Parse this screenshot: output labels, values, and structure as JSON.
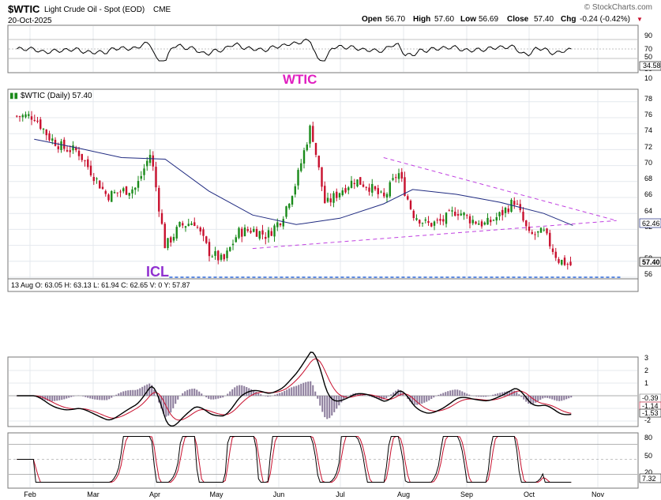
{
  "header": {
    "symbol": "$WTIC",
    "description": "Light Crude Oil - Spot (EOD)",
    "exchange": "CME",
    "date": "20-Oct-2025",
    "watermark": "© StockCharts.com",
    "open_label": "Open",
    "open": "56.70",
    "high_label": "High",
    "high": "57.60",
    "low_label": "Low",
    "low": "56.69",
    "close_label": "Close",
    "close": "57.40",
    "chg_label": "Chg",
    "chg": "-0.24 (-0.42%)",
    "chg_marker": "▼"
  },
  "rsi_panel": {
    "axis_labels": [
      "90",
      "70",
      "50",
      "30",
      "10"
    ],
    "current_label": "34.58",
    "colors": {
      "line": "#000000",
      "band": "#444444"
    }
  },
  "price_panel": {
    "legend": "$WTIC (Daily) 57.40",
    "title_annotation": "WTIC",
    "icl_annotation": "ICL",
    "axis_labels": [
      "78",
      "76",
      "74",
      "72",
      "70",
      "68",
      "66",
      "64",
      "62",
      "60",
      "58",
      "56"
    ],
    "ma_label": "62.46",
    "last_label": "57.40",
    "hover_bar": "13 Aug O: 63.05 H: 63.13 L: 61.94 C: 62.65 V: 0 Y: 57.87",
    "colors": {
      "up": "#1a8a1a",
      "down": "#c8102e",
      "ma": "#1f2a80",
      "trend": "#c040e0",
      "icl_line": "#2a66d9",
      "title_annotation": "#e020c0",
      "icl_text": "#9030d0"
    }
  },
  "macd_panel": {
    "axis_labels": [
      "3",
      "2",
      "1",
      "0",
      "-1",
      "-2"
    ],
    "current_labels": [
      "-0.39",
      "-1.14",
      "-1.53"
    ],
    "colors": {
      "macd": "#000000",
      "signal": "#c8102e",
      "hist": "#8a7a9a"
    }
  },
  "stoch_panel": {
    "axis_labels": [
      "80",
      "50",
      "20"
    ],
    "current_label": "7.32",
    "colors": {
      "k": "#000000",
      "d": "#c8102e"
    }
  },
  "x_axis": {
    "months": [
      "Feb",
      "Mar",
      "Apr",
      "May",
      "Jun",
      "Jul",
      "Aug",
      "Sep",
      "Oct",
      "Nov"
    ]
  },
  "chart_data": {
    "type": "candlestick",
    "title": "$WTIC Light Crude Oil - Spot (EOD)",
    "last_close": 57.4,
    "ylim": [
      55.5,
      79.5
    ],
    "price_path": [
      [
        "2025-02-03",
        76.2
      ],
      [
        "2025-02-10",
        73.6
      ],
      [
        "2025-02-17",
        72.2
      ],
      [
        "2025-02-24",
        71.8
      ],
      [
        "2025-03-03",
        69.0
      ],
      [
        "2025-03-10",
        66.2
      ],
      [
        "2025-03-17",
        66.8
      ],
      [
        "2025-03-24",
        67.2
      ],
      [
        "2025-03-31",
        71.6
      ],
      [
        "2025-04-07",
        59.8
      ],
      [
        "2025-04-14",
        62.4
      ],
      [
        "2025-04-21",
        63.0
      ],
      [
        "2025-04-28",
        59.2
      ],
      [
        "2025-05-05",
        58.0
      ],
      [
        "2025-05-12",
        61.6
      ],
      [
        "2025-05-19",
        62.0
      ],
      [
        "2025-05-26",
        61.2
      ],
      [
        "2025-06-02",
        63.4
      ],
      [
        "2025-06-09",
        68.0
      ],
      [
        "2025-06-16",
        75.0
      ],
      [
        "2025-06-23",
        65.0
      ],
      [
        "2025-06-30",
        66.8
      ],
      [
        "2025-07-07",
        68.2
      ],
      [
        "2025-07-14",
        67.4
      ],
      [
        "2025-07-21",
        65.8
      ],
      [
        "2025-07-28",
        69.2
      ],
      [
        "2025-08-04",
        64.0
      ],
      [
        "2025-08-11",
        62.6
      ],
      [
        "2025-08-18",
        63.0
      ],
      [
        "2025-08-25",
        64.4
      ],
      [
        "2025-09-01",
        63.2
      ],
      [
        "2025-09-08",
        62.6
      ],
      [
        "2025-09-15",
        63.8
      ],
      [
        "2025-09-22",
        65.6
      ],
      [
        "2025-09-29",
        61.2
      ],
      [
        "2025-10-06",
        61.6
      ],
      [
        "2025-10-13",
        58.2
      ],
      [
        "2025-10-20",
        57.4
      ]
    ],
    "moving_average": [
      [
        "2025-02-03",
        73.3
      ],
      [
        "2025-02-24",
        72.2
      ],
      [
        "2025-03-17",
        71.0
      ],
      [
        "2025-04-07",
        70.8
      ],
      [
        "2025-04-28",
        66.8
      ],
      [
        "2025-05-19",
        63.8
      ],
      [
        "2025-06-09",
        62.6
      ],
      [
        "2025-06-30",
        63.4
      ],
      [
        "2025-07-21",
        65.2
      ],
      [
        "2025-08-04",
        67.0
      ],
      [
        "2025-08-25",
        66.4
      ],
      [
        "2025-09-15",
        65.4
      ],
      [
        "2025-10-06",
        64.0
      ],
      [
        "2025-10-20",
        62.5
      ]
    ],
    "trendlines": [
      {
        "from": [
          "2025-07-21",
          71.0
        ],
        "to": [
          "2025-11-10",
          63.1
        ]
      },
      {
        "from": [
          "2025-05-19",
          59.6
        ],
        "to": [
          "2025-11-10",
          63.1
        ]
      },
      {
        "from": [
          "2025-04-09",
          56.0
        ],
        "to": [
          "2025-11-12",
          56.0
        ]
      }
    ]
  }
}
